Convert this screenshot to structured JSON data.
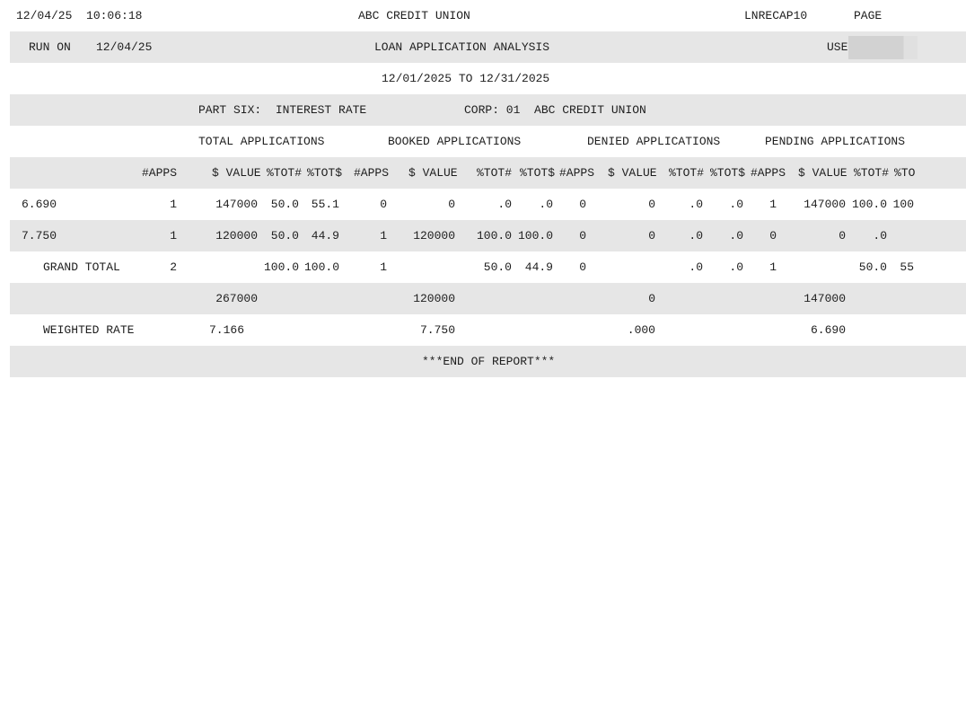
{
  "header": {
    "date_time": "12/04/25  10:06:18",
    "org": "ABC CREDIT UNION",
    "report_id": "LNRECAP10",
    "page_label": "PAGE",
    "run_on_label": "RUN ON",
    "run_on_date": "12/04/25",
    "title": "LOAN APPLICATION ANALYSIS",
    "user_label": "USER",
    "date_range": "12/01/2025 TO 12/31/2025",
    "part": "PART SIX:  INTEREST RATE",
    "corp": "CORP: 01  ABC CREDIT UNION"
  },
  "groups": [
    "TOTAL APPLICATIONS",
    "BOOKED APPLICATIONS",
    "DENIED APPLICATIONS",
    "PENDING APPLICATIONS"
  ],
  "column_headers": [
    "#APPS",
    "$ VALUE",
    "%TOT#",
    "%TOT$",
    "#APPS",
    "$ VALUE",
    "%TOT#",
    "%TOT$",
    "#APPS",
    "$ VALUE",
    "%TOT#",
    "%TOT$",
    "#APPS",
    "$ VALUE",
    "%TOT#",
    "%TO"
  ],
  "rows": [
    {
      "rate": "6.690",
      "values": [
        "1",
        "147000",
        "50.0",
        "55.1",
        "0",
        "0",
        ".0",
        ".0",
        "0",
        "0",
        ".0",
        ".0",
        "1",
        "147000",
        "100.0",
        "100"
      ]
    },
    {
      "rate": "7.750",
      "values": [
        "1",
        "120000",
        "50.0",
        "44.9",
        "1",
        "120000",
        "100.0",
        "100.0",
        "0",
        "0",
        ".0",
        ".0",
        "0",
        "0",
        ".0",
        ""
      ]
    }
  ],
  "grand_total": {
    "label": "GRAND TOTAL",
    "total_apps": "2",
    "total_pct_num": "100.0",
    "total_pct_val": "100.0",
    "booked_apps": "1",
    "booked_pct_num": "50.0",
    "booked_pct_val": "44.9",
    "denied_apps": "0",
    "denied_pct_num": ".0",
    "denied_pct_val": ".0",
    "pending_apps": "1",
    "pending_pct_num": "50.0",
    "pending_pct_val": "55",
    "total_value": "267000",
    "booked_value": "120000",
    "denied_value": "0",
    "pending_value": "147000"
  },
  "weighted_rate": {
    "label": "WEIGHTED RATE",
    "total": "7.166",
    "booked": "7.750",
    "denied": ".000",
    "pending": "6.690"
  },
  "footer": "***END OF REPORT***"
}
